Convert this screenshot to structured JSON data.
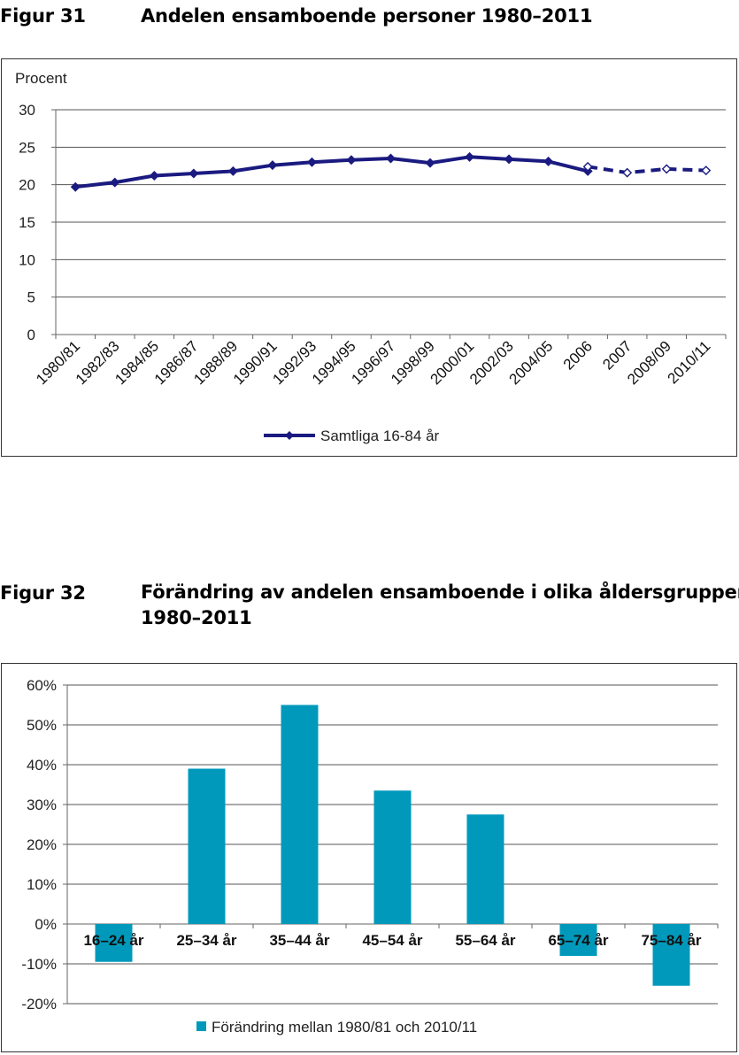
{
  "figure31": {
    "number": "Figur 31",
    "title": "Andelen ensamboende personer 1980–2011"
  },
  "figure32": {
    "number": "Figur 32",
    "title_line1": "Förändring av andelen ensamboende i olika åldersgrupper",
    "title_line2": "1980–2011"
  },
  "chart_data": [
    {
      "type": "line",
      "title": "",
      "ylabel": "Procent",
      "ylim": [
        0,
        30
      ],
      "yticks": [
        0,
        5,
        10,
        15,
        20,
        25,
        30
      ],
      "grid": true,
      "legend_position": "bottom",
      "x": [
        "1980/81",
        "1982/83",
        "1984/85",
        "1986/87",
        "1988/89",
        "1990/91",
        "1992/93",
        "1994/95",
        "1996/97",
        "1998/99",
        "2000/01",
        "2002/03",
        "2004/05",
        "2006",
        "2007",
        "2008/09",
        "2010/11"
      ],
      "series": [
        {
          "name": "Samtliga 16-84 år",
          "color": "#1a1a80",
          "values": [
            19.7,
            20.3,
            21.2,
            21.5,
            21.8,
            22.6,
            23.0,
            23.3,
            23.5,
            22.9,
            23.7,
            23.4,
            23.1,
            21.8,
            null,
            null,
            null
          ]
        },
        {
          "name": "",
          "color": "#1a1a80",
          "style": "dashed-open-markers",
          "values": [
            null,
            null,
            null,
            null,
            null,
            null,
            null,
            null,
            null,
            null,
            null,
            null,
            null,
            22.4,
            21.6,
            22.1,
            21.9
          ]
        }
      ]
    },
    {
      "type": "bar",
      "title": "",
      "ylim": [
        -20,
        60
      ],
      "yticks": [
        "-20%",
        "-10%",
        "0%",
        "10%",
        "20%",
        "30%",
        "40%",
        "50%",
        "60%"
      ],
      "grid": true,
      "legend_position": "bottom",
      "categories": [
        "16–24 år",
        "25–34 år",
        "35–44 år",
        "45–54 år",
        "55–64 år",
        "65–74 år",
        "75–84 år"
      ],
      "series": [
        {
          "name": "Förändring mellan 1980/81 och 2010/11",
          "color": "#0099bb",
          "values": [
            -9.5,
            39,
            55,
            33.5,
            27.5,
            -8,
            -15.5
          ]
        }
      ]
    }
  ]
}
